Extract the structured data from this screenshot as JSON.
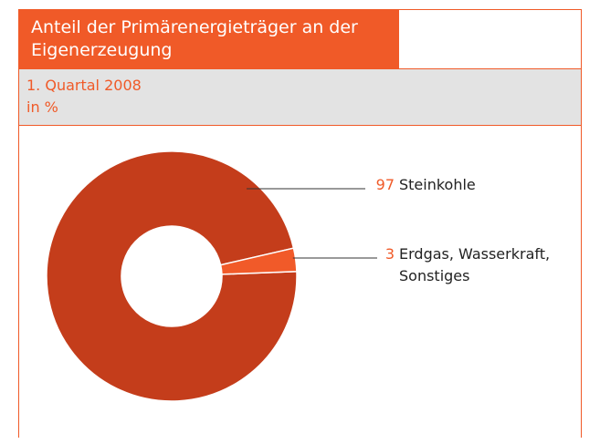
{
  "chart_data": {
    "type": "pie",
    "title": "Anteil der Primärenergieträger an der Eigenerzeugung",
    "subtitle": "1. Quartal 2008",
    "unit": "in %",
    "categories": [
      "Steinkohle",
      "Erdgas, Wasserkraft, Sonstiges"
    ],
    "values": [
      97,
      3
    ],
    "colors": [
      "#c43d1b",
      "#f15a29"
    ],
    "donut": true
  }
}
